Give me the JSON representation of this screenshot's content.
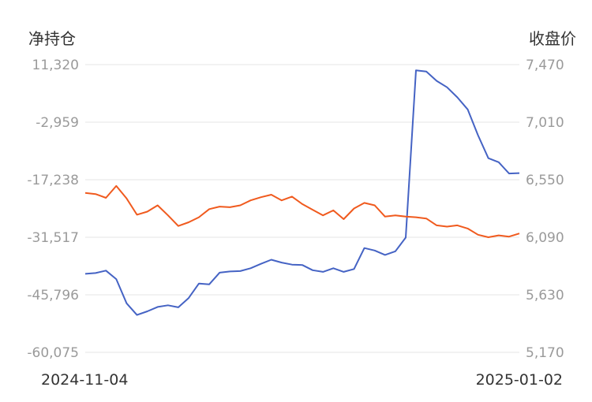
{
  "chart_data": {
    "type": "line",
    "left_axis": {
      "label": "净持仓",
      "ticks": [
        "11,320",
        "-2,959",
        "-17,238",
        "-31,517",
        "-45,796",
        "-60,075"
      ],
      "ylim": [
        -60075,
        11320
      ]
    },
    "right_axis": {
      "label": "收盘价",
      "ticks": [
        "7,470",
        "7,010",
        "6,550",
        "6,090",
        "5,630",
        "5,170"
      ],
      "ylim": [
        5170,
        7470
      ]
    },
    "x_labels": [
      "2024-11-04",
      "2025-01-02"
    ],
    "grid": true,
    "series": [
      {
        "axis": "left",
        "color": "#4563c4",
        "values": [
          -40600,
          -40400,
          -39800,
          -41900,
          -47900,
          -50800,
          -49900,
          -48800,
          -48400,
          -48900,
          -46600,
          -43000,
          -43200,
          -40300,
          -40000,
          -39900,
          -39200,
          -38100,
          -37100,
          -37800,
          -38300,
          -38400,
          -39700,
          -40100,
          -39200,
          -40100,
          -39400,
          -34200,
          -34800,
          -35900,
          -35000,
          -31600,
          9900,
          9600,
          7300,
          5700,
          3200,
          200,
          -6200,
          -11900,
          -12900,
          -15700,
          -15600
        ]
      },
      {
        "axis": "right",
        "color": "#f05a1e",
        "values": [
          6445,
          6435,
          6405,
          6500,
          6400,
          6270,
          6295,
          6345,
          6265,
          6180,
          6210,
          6250,
          6315,
          6335,
          6330,
          6345,
          6385,
          6410,
          6430,
          6385,
          6415,
          6355,
          6310,
          6265,
          6305,
          6235,
          6320,
          6365,
          6345,
          6255,
          6265,
          6255,
          6250,
          6240,
          6185,
          6175,
          6185,
          6160,
          6110,
          6090,
          6105,
          6095,
          6120
        ]
      }
    ]
  }
}
